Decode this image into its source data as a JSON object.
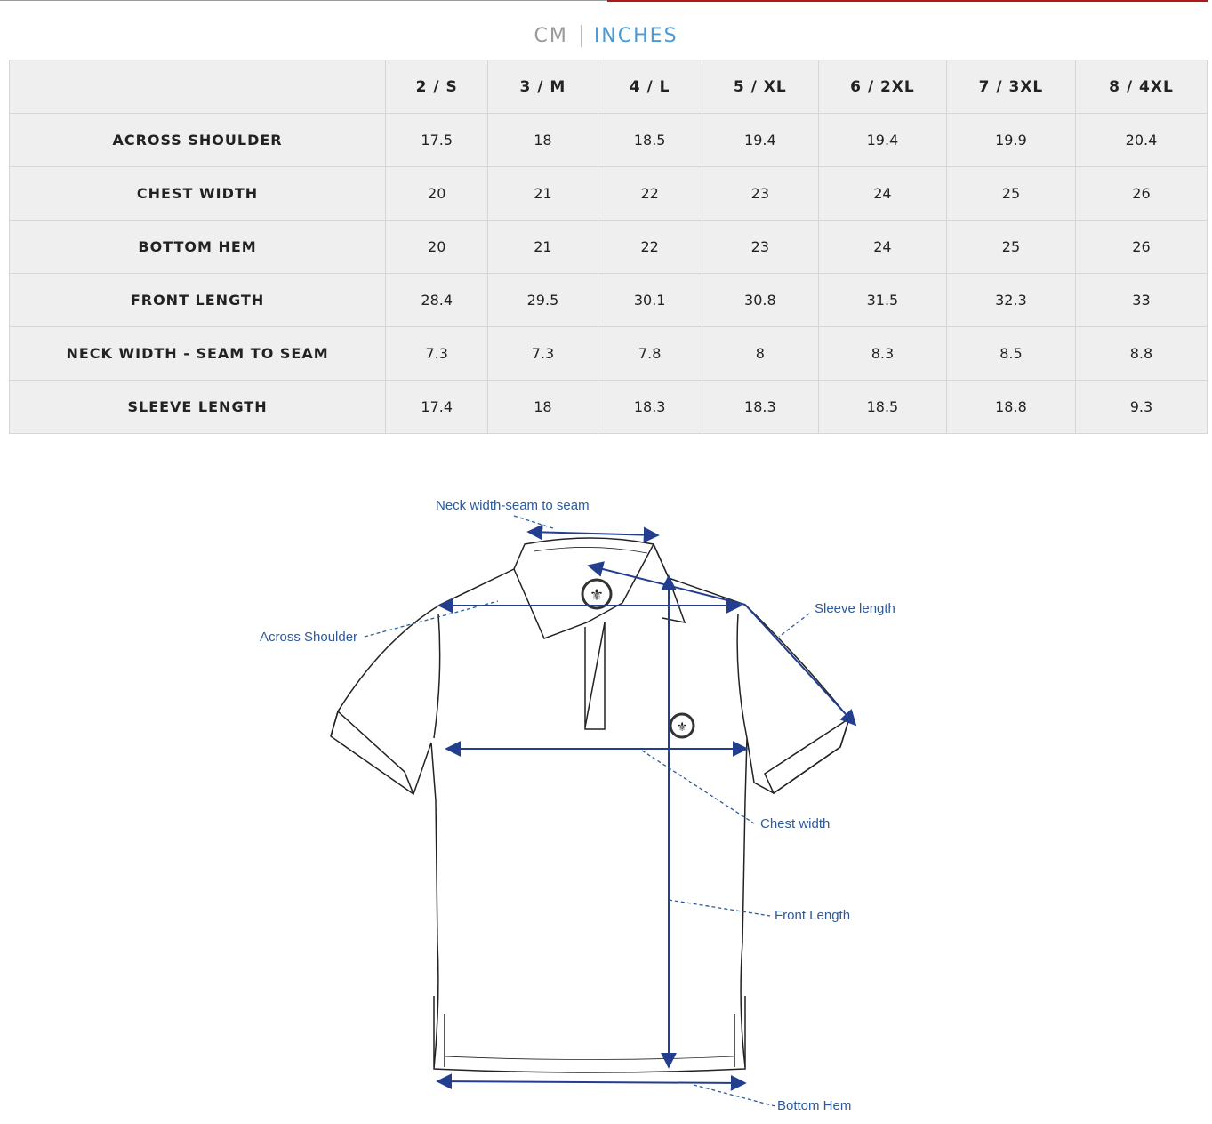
{
  "units": {
    "cm_label": "CM",
    "inches_label": "INCHES",
    "selected": "INCHES"
  },
  "table": {
    "columns": [
      "",
      "2 / S",
      "3 / M",
      "4 / L",
      "5 / XL",
      "6 / 2XL",
      "7 / 3XL",
      "8 / 4XL"
    ],
    "rows": [
      {
        "label": "ACROSS SHOULDER",
        "values": [
          "17.5",
          "18",
          "18.5",
          "19.4",
          "19.4",
          "19.9",
          "20.4"
        ]
      },
      {
        "label": "CHEST WIDTH",
        "values": [
          "20",
          "21",
          "22",
          "23",
          "24",
          "25",
          "26"
        ]
      },
      {
        "label": "BOTTOM HEM",
        "values": [
          "20",
          "21",
          "22",
          "23",
          "24",
          "25",
          "26"
        ]
      },
      {
        "label": "FRONT LENGTH",
        "values": [
          "28.4",
          "29.5",
          "30.1",
          "30.8",
          "31.5",
          "32.3",
          "33"
        ]
      },
      {
        "label": "NECK WIDTH - SEAM TO SEAM",
        "values": [
          "7.3",
          "7.3",
          "7.8",
          "8",
          "8.3",
          "8.5",
          "8.8"
        ]
      },
      {
        "label": "SLEEVE LENGTH",
        "values": [
          "17.4",
          "18",
          "18.3",
          "18.3",
          "18.5",
          "18.8",
          "9.3"
        ]
      }
    ]
  },
  "diagram": {
    "labels": {
      "neck": "Neck width-seam to seam",
      "shoulder": "Across Shoulder",
      "sleeve": "Sleeve length",
      "chest": "Chest width",
      "front": "Front Length",
      "hem": "Bottom Hem"
    },
    "colors": {
      "measure": "#233d8f",
      "label": "#2d5a9a",
      "accent": "#4a9ad8"
    }
  }
}
